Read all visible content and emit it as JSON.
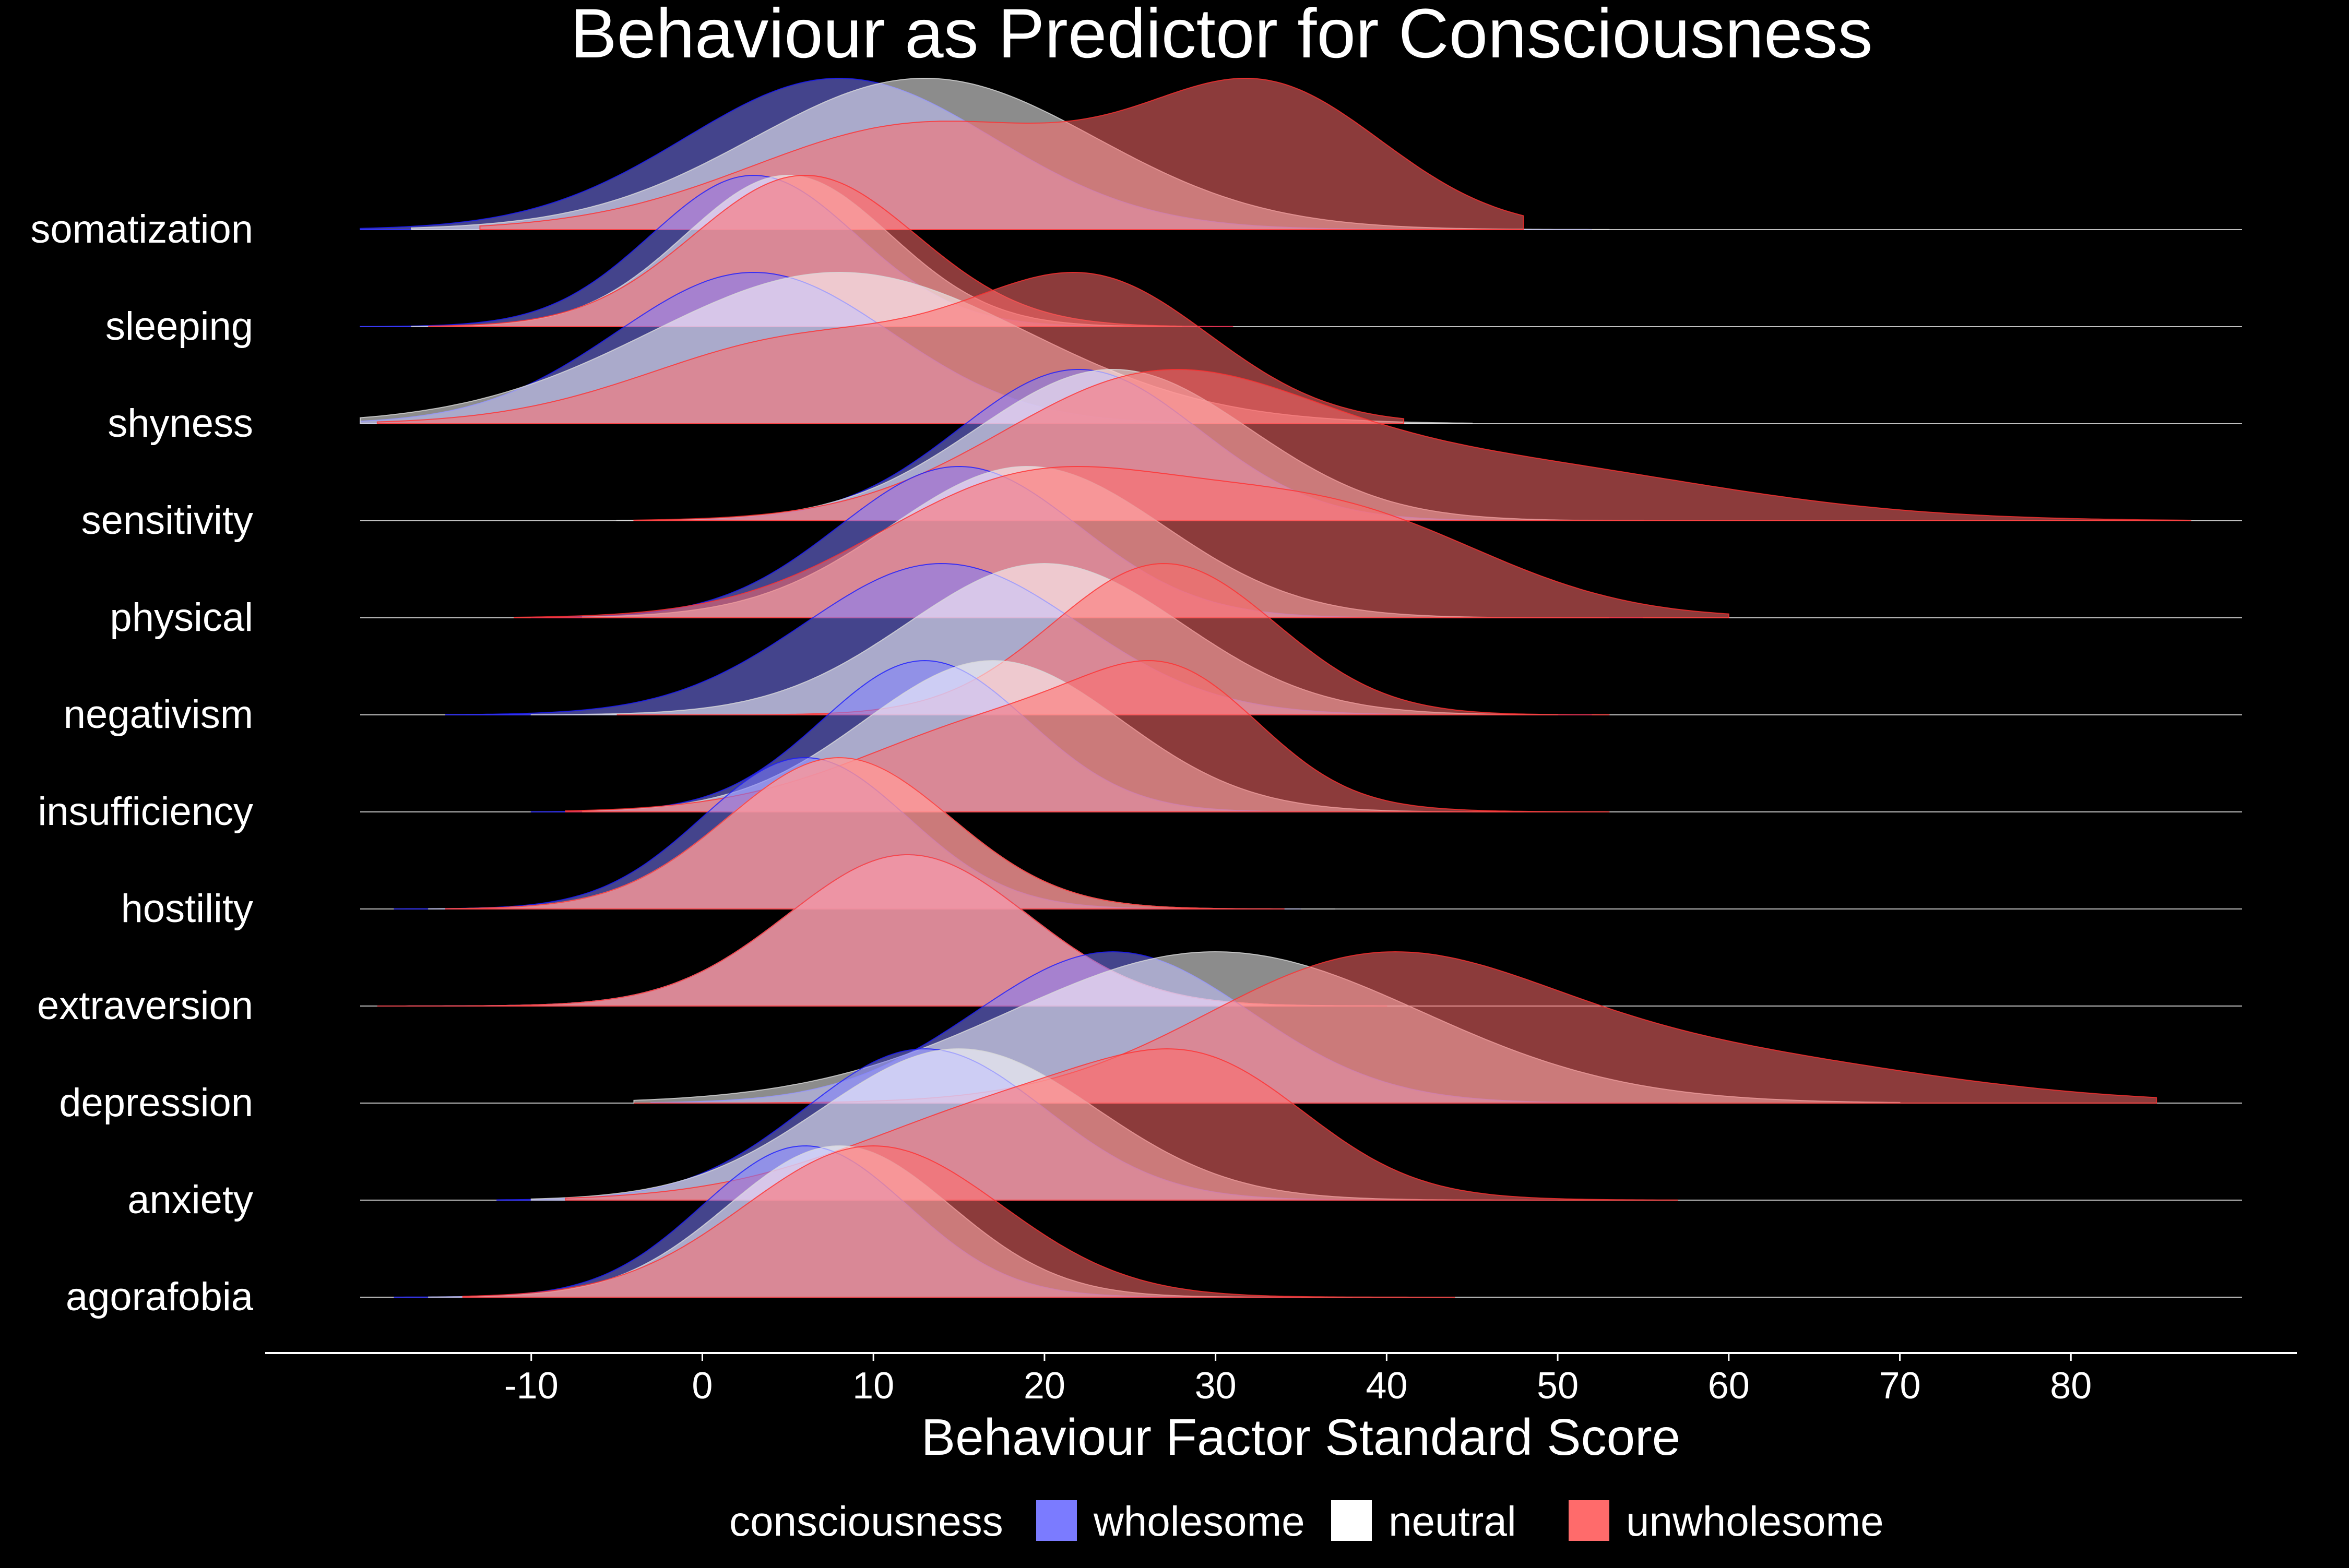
{
  "chart_data": {
    "type": "ridgeline",
    "title": "Behaviour as Predictor for Consciousness",
    "xlabel": "Behaviour Factor Standard Score",
    "ylabel": "",
    "xlim": [
      -20,
      90
    ],
    "x_ticks": [
      -10,
      0,
      10,
      20,
      30,
      40,
      50,
      60,
      70,
      80
    ],
    "legend_title": "consciousness",
    "legend_position": "bottom",
    "grid": false,
    "series": [
      {
        "name": "wholesome",
        "color": "#7b7bff",
        "line": "#1a1aff"
      },
      {
        "name": "neutral",
        "color": "#ffffff",
        "line": "#d9d9d9"
      },
      {
        "name": "unwholesome",
        "color": "#ff6b6b",
        "line": "#ff3030"
      }
    ],
    "ridges": [
      {
        "label": "somatization",
        "densities": {
          "wholesome": {
            "components": [
              [
                8,
                9,
                1.0
              ]
            ],
            "range": [
              -20,
              52
            ]
          },
          "neutral": {
            "components": [
              [
                13,
                10,
                1.0
              ]
            ],
            "range": [
              -17,
              53
            ]
          },
          "unwholesome": {
            "components": [
              [
                13,
                10,
                0.78
              ],
              [
                33,
                7,
                0.7
              ]
            ],
            "range": [
              -13,
              48
            ]
          }
        }
      },
      {
        "label": "sleeping",
        "densities": {
          "wholesome": {
            "components": [
              [
                3,
                6,
                1.0
              ]
            ],
            "range": [
              -20,
              31
            ]
          },
          "neutral": {
            "components": [
              [
                5,
                6,
                1.0
              ]
            ],
            "range": [
              -17,
              28
            ]
          },
          "unwholesome": {
            "components": [
              [
                6,
                6.5,
                1.0
              ]
            ],
            "range": [
              -16,
              31
            ]
          }
        }
      },
      {
        "label": "shyness",
        "densities": {
          "wholesome": {
            "components": [
              [
                3,
                8,
                1.0
              ]
            ],
            "range": [
              -20,
              35
            ]
          },
          "neutral": {
            "components": [
              [
                8,
                11,
                1.0
              ]
            ],
            "range": [
              -20,
              45
            ]
          },
          "unwholesome": {
            "components": [
              [
                6,
                9,
                0.72
              ],
              [
                23,
                7,
                0.9
              ]
            ],
            "range": [
              -19,
              41
            ]
          }
        }
      },
      {
        "label": "sensitivity",
        "densities": {
          "wholesome": {
            "components": [
              [
                22,
                7,
                1.0
              ]
            ],
            "range": [
              -2,
              50
            ]
          },
          "neutral": {
            "components": [
              [
                24,
                8,
                1.0
              ]
            ],
            "range": [
              -5,
              55
            ]
          },
          "unwholesome": {
            "components": [
              [
                26,
                9,
                0.8
              ],
              [
                44,
                14,
                0.62
              ]
            ],
            "range": [
              -4,
              87
            ]
          }
        }
      },
      {
        "label": "physical",
        "densities": {
          "wholesome": {
            "components": [
              [
                15,
                7,
                1.0
              ]
            ],
            "range": [
              -10,
              55
            ]
          },
          "neutral": {
            "components": [
              [
                19,
                8,
                1.0
              ]
            ],
            "range": [
              -7,
              53
            ]
          },
          "unwholesome": {
            "components": [
              [
                19,
                9,
                0.82
              ],
              [
                37,
                9,
                0.62
              ]
            ],
            "range": [
              -11,
              60
            ]
          }
        }
      },
      {
        "label": "negativism",
        "densities": {
          "wholesome": {
            "components": [
              [
                14,
                8,
                1.0
              ]
            ],
            "range": [
              -15,
              52
            ]
          },
          "neutral": {
            "components": [
              [
                20,
                8,
                1.0
              ]
            ],
            "range": [
              -10,
              50
            ]
          },
          "unwholesome": {
            "components": [
              [
                27,
                6.5,
                1.0
              ]
            ],
            "range": [
              -5,
              53
            ]
          }
        }
      },
      {
        "label": "insufficiency",
        "densities": {
          "wholesome": {
            "components": [
              [
                13,
                6,
                1.0
              ]
            ],
            "range": [
              -10,
              45
            ]
          },
          "neutral": {
            "components": [
              [
                17,
                7.5,
                1.0
              ]
            ],
            "range": [
              -7,
              48
            ]
          },
          "unwholesome": {
            "components": [
              [
                19,
                9,
                0.85
              ],
              [
                28,
                5,
                0.42
              ]
            ],
            "range": [
              -8,
              53
            ]
          }
        }
      },
      {
        "label": "hostility",
        "densities": {
          "wholesome": {
            "components": [
              [
                6,
                6,
                1.0
              ]
            ],
            "range": [
              -18,
              35
            ]
          },
          "neutral": {
            "components": [
              [
                8,
                6.5,
                1.0
              ]
            ],
            "range": [
              -16,
              37
            ]
          },
          "unwholesome": {
            "components": [
              [
                8,
                6.5,
                1.0
              ]
            ],
            "range": [
              -15,
              34
            ]
          }
        }
      },
      {
        "label": "extraversion",
        "densities": {
          "wholesome": {
            "components": [
              [
                12,
                7,
                1.0
              ]
            ],
            "range": [
              -19,
              40
            ]
          },
          "neutral": {
            "components": [
              [
                12,
                7,
                1.0
              ]
            ],
            "range": [
              -19,
              40
            ]
          },
          "unwholesome": {
            "components": [
              [
                12,
                7,
                1.0
              ]
            ],
            "range": [
              -19,
              40
            ]
          }
        }
      },
      {
        "label": "depression",
        "densities": {
          "wholesome": {
            "components": [
              [
                24,
                8,
                1.0
              ]
            ],
            "range": [
              -3,
              57
            ]
          },
          "neutral": {
            "components": [
              [
                30,
                12,
                1.0
              ]
            ],
            "range": [
              -4,
              70
            ]
          },
          "unwholesome": {
            "components": [
              [
                39,
                10,
                0.9
              ],
              [
                58,
                13,
                0.42
              ]
            ],
            "range": [
              -4,
              85
            ]
          }
        }
      },
      {
        "label": "anxiety",
        "densities": {
          "wholesome": {
            "components": [
              [
                13,
                7,
                1.0
              ]
            ],
            "range": [
              -12,
              50
            ]
          },
          "neutral": {
            "components": [
              [
                15,
                8,
                1.0
              ]
            ],
            "range": [
              -10,
              57
            ]
          },
          "unwholesome": {
            "components": [
              [
                20,
                10,
                0.85
              ],
              [
                30,
                6,
                0.4
              ]
            ],
            "range": [
              -8,
              57
            ]
          }
        }
      },
      {
        "label": "agorafobia",
        "densities": {
          "wholesome": {
            "components": [
              [
                6,
                6,
                1.0
              ]
            ],
            "range": [
              -18,
              35
            ]
          },
          "neutral": {
            "components": [
              [
                8,
                6.5,
                1.0
              ]
            ],
            "range": [
              -16,
              38
            ]
          },
          "unwholesome": {
            "components": [
              [
                10,
                7.5,
                1.0
              ]
            ],
            "range": [
              -14,
              44
            ]
          }
        }
      }
    ]
  }
}
